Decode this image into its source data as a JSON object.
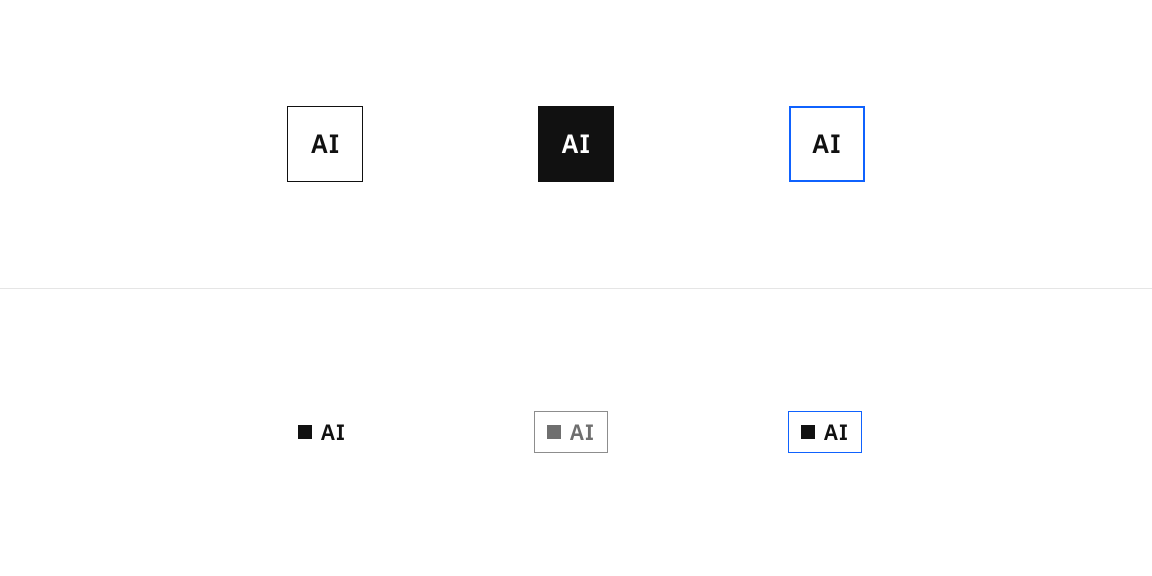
{
  "layout": {
    "divider_color": "#e5e5e5"
  },
  "row_top": {
    "variant_a": {
      "label": "AI",
      "border_color": "#111111",
      "text_color": "#111111",
      "bg_color": "#ffffff"
    },
    "variant_b": {
      "label": "AI",
      "bg_color": "#111111",
      "text_color": "#ffffff"
    },
    "variant_c": {
      "label": "AI",
      "border_color": "#0f62fe",
      "text_color": "#111111",
      "bg_color": "#ffffff"
    }
  },
  "row_bottom": {
    "variant_a": {
      "label": "AI",
      "marker_color": "#111111",
      "text_color": "#111111"
    },
    "variant_b": {
      "label": "AI",
      "border_color": "#8d8d8d",
      "marker_color": "#6f6f6f",
      "text_color": "#6f6f6f",
      "bg_color": "#ffffff"
    },
    "variant_c": {
      "label": "AI",
      "border_color": "#0f62fe",
      "marker_color": "#111111",
      "text_color": "#111111",
      "bg_color": "#ffffff"
    }
  }
}
